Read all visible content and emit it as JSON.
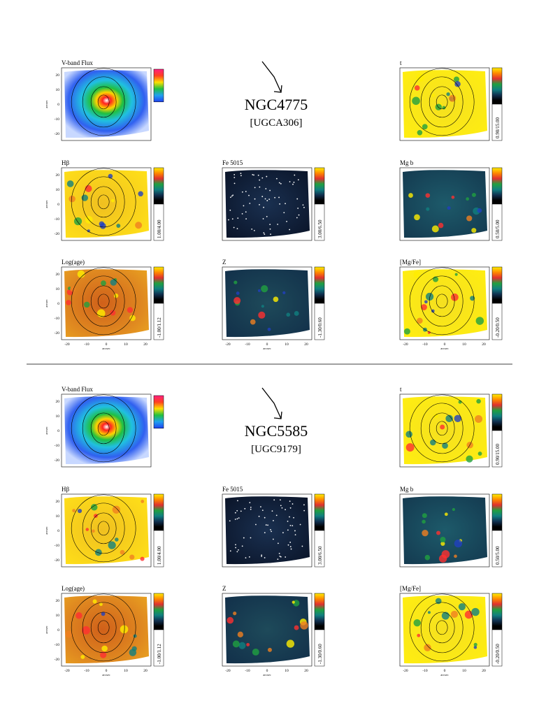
{
  "figure": {
    "axis_label": "arcsec",
    "y_ticks": [
      "20",
      "10",
      "0",
      "-10",
      "-20"
    ],
    "x_ticks": [
      "-20",
      "-10",
      "0",
      "10",
      "20"
    ],
    "galaxies": [
      {
        "name": "NGC4775",
        "alt_name": "[UGCA306]",
        "panels": [
          {
            "title": "V-band Flux"
          },
          {
            "title": "t",
            "range": "0.90/15.00"
          },
          {
            "title": "Hβ",
            "range": "1.00/4.00"
          },
          {
            "title": "Fe 5015",
            "range": "3.00/6.50"
          },
          {
            "title": "Mg b",
            "range": "0.50/5.00"
          },
          {
            "title": "Log(age)",
            "range": "-1.00/1.12"
          },
          {
            "title": "Z",
            "range": "-1.30/0.60"
          },
          {
            "title": "[Mg/Fe]",
            "range": "-0.20/0.50"
          }
        ]
      },
      {
        "name": "NGC5585",
        "alt_name": "[UGC9179]",
        "panels": [
          {
            "title": "V-band Flux"
          },
          {
            "title": "t",
            "range": "0.90/15.00"
          },
          {
            "title": "Hβ",
            "range": "1.00/4.00"
          },
          {
            "title": "Fe 5015",
            "range": "3.00/6.50"
          },
          {
            "title": "Mg b",
            "range": "0.50/5.00"
          },
          {
            "title": "Log(age)",
            "range": "-1.00/1.12"
          },
          {
            "title": "Z",
            "range": "-1.30/0.60"
          },
          {
            "title": "[Mg/Fe]",
            "range": "-0.20/0.50"
          }
        ]
      }
    ]
  }
}
